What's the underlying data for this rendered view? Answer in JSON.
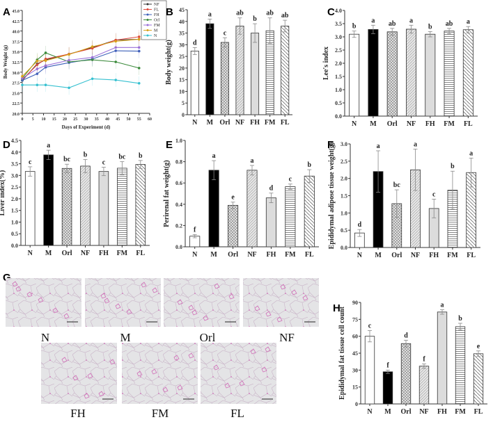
{
  "groups": [
    "N",
    "M",
    "Orl",
    "NF",
    "FH",
    "FM",
    "FL"
  ],
  "chart_data": [
    {
      "panel": "A",
      "type": "line",
      "xlabel": "Days of Experiment (d)",
      "ylabel": "Body Weight (g)",
      "xlim": [
        0,
        60
      ],
      "ylim": [
        20,
        45
      ],
      "xticks": [
        "0",
        "5",
        "10",
        "15",
        "20",
        "25",
        "30",
        "35",
        "40",
        "45",
        "50",
        "55",
        "60"
      ],
      "yticks": [
        "20.0",
        "22.5",
        "25.0",
        "27.5",
        "30.0",
        "32.5",
        "35.0",
        "37.5",
        "40.0",
        "42.5",
        "45.0"
      ],
      "legend_position": "top-right",
      "x": [
        0,
        7,
        11,
        22,
        33,
        44,
        55
      ],
      "series": [
        {
          "name": "NF",
          "color": "#333333",
          "marker": "square",
          "values": [
            28.0,
            32.0,
            33.0,
            34.4,
            36.0,
            37.8,
            38.0
          ]
        },
        {
          "name": "FL",
          "color": "#e0463a",
          "marker": "circle",
          "values": [
            28.2,
            31.8,
            33.2,
            34.4,
            35.8,
            37.8,
            38.6
          ]
        },
        {
          "name": "FH",
          "color": "#3b5fb8",
          "marker": "triangle-up",
          "values": [
            28.0,
            29.6,
            31.2,
            32.3,
            33.2,
            35.2,
            35.1
          ]
        },
        {
          "name": "Orl",
          "color": "#3a8a3a",
          "marker": "triangle-down",
          "values": [
            28.5,
            33.0,
            34.7,
            32.5,
            33.0,
            32.5,
            31.0
          ]
        },
        {
          "name": "FM",
          "color": "#9a6fd8",
          "marker": "diamond",
          "values": [
            28.5,
            30.8,
            31.6,
            32.9,
            33.6,
            36.0,
            36.0
          ]
        },
        {
          "name": "M",
          "color": "#d8a21a",
          "marker": "circle",
          "values": [
            29.0,
            32.7,
            32.8,
            34.3,
            36.2,
            37.5,
            38.0
          ]
        },
        {
          "name": "N",
          "color": "#35c0d0",
          "marker": "star",
          "values": [
            26.9,
            26.9,
            26.9,
            26.2,
            28.4,
            28.1,
            27.3
          ]
        }
      ]
    },
    {
      "panel": "B",
      "type": "bar",
      "ylabel": "Body weight(g)",
      "ylim": [
        0,
        45
      ],
      "yticks": [
        "0",
        "5",
        "10",
        "15",
        "20",
        "25",
        "30",
        "35",
        "40",
        "45"
      ],
      "values": [
        27.3,
        39.0,
        31.0,
        38.0,
        35.0,
        36.0,
        38.0
      ],
      "errors": [
        1.5,
        2.0,
        2.0,
        3.5,
        4.0,
        5.5,
        2.5
      ],
      "significance": [
        "d",
        "a",
        "c",
        "ab",
        "b",
        "ab",
        "ab"
      ]
    },
    {
      "panel": "C",
      "type": "bar",
      "ylabel": "Lee's index",
      "ylim": [
        0,
        4
      ],
      "yticks": [
        "0.0",
        "0.5",
        "1.0",
        "1.5",
        "2.0",
        "2.5",
        "3.0",
        "3.5",
        "4.0"
      ],
      "values": [
        3.1,
        3.28,
        3.19,
        3.29,
        3.1,
        3.22,
        3.27
      ],
      "errors": [
        0.12,
        0.16,
        0.13,
        0.15,
        0.1,
        0.1,
        0.12
      ],
      "significance": [
        "b",
        "a",
        "ab",
        "a",
        "b",
        "ab",
        "a"
      ]
    },
    {
      "panel": "D",
      "type": "bar",
      "ylabel": "Liver index(%)",
      "ylim": [
        0,
        4.5
      ],
      "yticks": [
        "0.0",
        "0.5",
        "1.0",
        "1.5",
        "2.0",
        "2.5",
        "3.0",
        "3.5",
        "4.0",
        "4.5"
      ],
      "values": [
        3.17,
        3.88,
        3.3,
        3.4,
        3.17,
        3.31,
        3.47
      ],
      "errors": [
        0.2,
        0.2,
        0.18,
        0.28,
        0.18,
        0.28,
        0.17
      ],
      "significance": [
        "c",
        "a",
        "bc",
        "b",
        "c",
        "bc",
        "b"
      ]
    },
    {
      "panel": "E",
      "type": "bar",
      "ylabel": "Perirenal fat weight(g)",
      "ylim": [
        0,
        1.0
      ],
      "yticks": [
        "0.0",
        "0.2",
        "0.4",
        "0.6",
        "0.8",
        "1.0"
      ],
      "values": [
        0.1,
        0.72,
        0.39,
        0.72,
        0.46,
        0.565,
        0.665
      ],
      "errors": [
        0.015,
        0.09,
        0.03,
        0.045,
        0.045,
        0.025,
        0.06
      ],
      "significance": [
        "f",
        "a",
        "e",
        "a",
        "d",
        "c",
        "b"
      ]
    },
    {
      "panel": "F",
      "type": "bar",
      "ylabel": "Epididymal adipose tissue weight(g)",
      "ylim": [
        0,
        3.0
      ],
      "yticks": [
        "0.0",
        "0.5",
        "1.0",
        "1.5",
        "2.0",
        "2.5",
        "3.0"
      ],
      "values": [
        0.42,
        2.2,
        1.27,
        2.25,
        1.13,
        1.66,
        2.17
      ],
      "errors": [
        0.1,
        0.6,
        0.4,
        0.6,
        0.27,
        0.55,
        0.42
      ],
      "significance": [
        "d",
        "a",
        "bc",
        "a",
        "c",
        "b",
        "a"
      ]
    },
    {
      "panel": "H",
      "type": "bar",
      "ylabel": "Epididymal fat tissue cell count",
      "ylim": [
        0,
        90
      ],
      "yticks": [
        "0",
        "15",
        "30",
        "45",
        "60",
        "75",
        "90"
      ],
      "values": [
        60,
        28.5,
        53.5,
        33.5,
        81.5,
        68.5,
        44.5
      ],
      "errors": [
        5,
        1.5,
        3,
        2,
        2,
        3,
        2.5
      ],
      "significance": [
        "c",
        "f",
        "d",
        "f",
        "a",
        "b",
        "e"
      ]
    }
  ],
  "micrographs": {
    "panel": "G",
    "labels": [
      "N",
      "M",
      "Orl",
      "NF",
      "FH",
      "FM",
      "FL"
    ],
    "stain_color": "#d070b8",
    "background_color": "#e4e4e6"
  },
  "panel_labels": [
    "A",
    "B",
    "C",
    "D",
    "E",
    "F",
    "G",
    "H"
  ]
}
